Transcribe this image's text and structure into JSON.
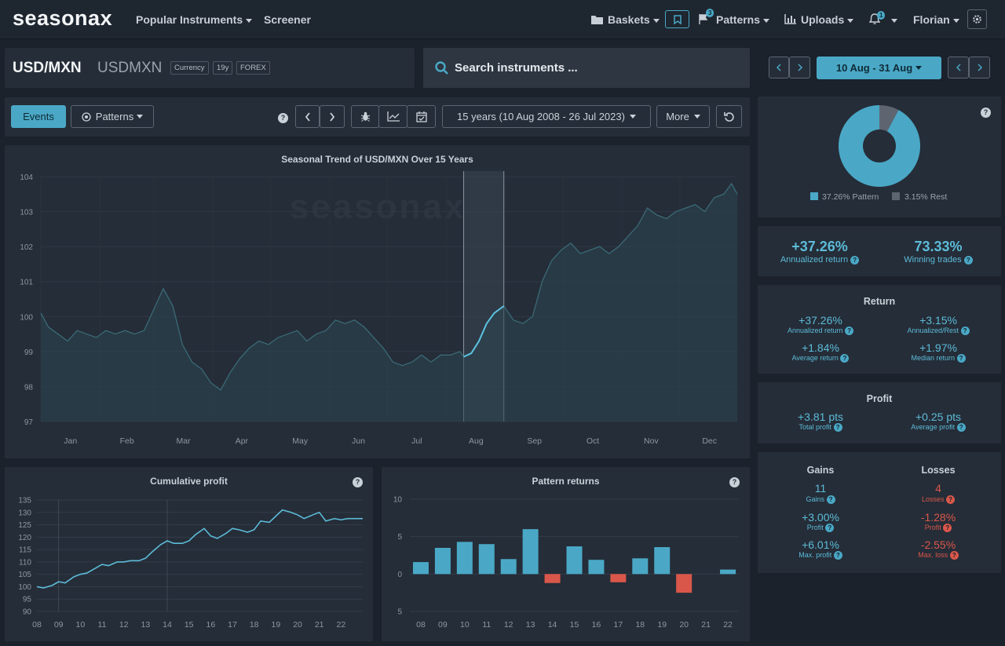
{
  "app": {
    "logo": "seasonax"
  },
  "nav": {
    "popular": "Popular Instruments",
    "screener": "Screener",
    "baskets": "Baskets",
    "patterns": "Patterns",
    "patterns_badge": "3",
    "uploads": "Uploads",
    "notif_badge": "1",
    "user": "Florian"
  },
  "instrument": {
    "symbol": "USD/MXN",
    "name": "USDMXN",
    "tags": [
      "Currency",
      "19y",
      "FOREX"
    ]
  },
  "search": {
    "placeholder": "Search instruments ..."
  },
  "period": {
    "label": "10 Aug - 31 Aug"
  },
  "toolbar": {
    "events": "Events",
    "patterns": "Patterns",
    "range": "15 years (10 Aug 2008 - 26 Jul 2023)",
    "more": "More"
  },
  "donut": {
    "pattern_label": "37.26% Pattern",
    "rest_label": "3.15% Rest",
    "pattern_pct": 37.26,
    "rest_pct": 3.15,
    "pattern_color": "#4aa8c6",
    "rest_color": "#5d6670"
  },
  "summary": {
    "annual_return": "+37.26%",
    "annual_return_label": "Annualized return",
    "winning": "73.33%",
    "winning_label": "Winning trades"
  },
  "return_box": {
    "title": "Return",
    "annualized": "+37.26%",
    "annualized_label": "Annualized return",
    "annualized_rest": "+3.15%",
    "annualized_rest_label": "Annualized/Rest",
    "average": "+1.84%",
    "average_label": "Average return",
    "median": "+1.97%",
    "median_label": "Median return"
  },
  "profit_box": {
    "title": "Profit",
    "total": "+3.81 pts",
    "total_label": "Total profit",
    "average": "+0.25 pts",
    "average_label": "Average profit"
  },
  "gl_box": {
    "gains_title": "Gains",
    "losses_title": "Losses",
    "gains_count": "11",
    "gains_label": "Gains",
    "losses_count": "4",
    "losses_label": "Losses",
    "gain_profit": "+3.00%",
    "loss_profit": "-1.28%",
    "profit_label": "Profit",
    "max_profit": "+6.01%",
    "max_profit_label": "Max. profit",
    "max_loss": "-2.55%",
    "max_loss_label": "Max. loss"
  },
  "chart_data": [
    {
      "type": "area",
      "title": "Seasonal Trend of USD/MXN Over 15 Years",
      "watermark": "seasonax",
      "ylim": [
        97,
        104
      ],
      "yticks": [
        97,
        98,
        99,
        100,
        101,
        102,
        103,
        104
      ],
      "months": [
        "Jan",
        "Feb",
        "Mar",
        "Apr",
        "May",
        "Jun",
        "Jul",
        "Aug",
        "Sep",
        "Oct",
        "Nov",
        "Dec"
      ],
      "highlight_range": [
        "10 Aug",
        "31 Aug"
      ],
      "x_day": [
        1,
        5,
        10,
        15,
        20,
        25,
        30,
        35,
        40,
        45,
        50,
        55,
        60,
        65,
        70,
        75,
        80,
        85,
        90,
        95,
        100,
        105,
        110,
        115,
        120,
        125,
        130,
        135,
        140,
        145,
        150,
        155,
        160,
        165,
        170,
        175,
        180,
        185,
        190,
        195,
        200,
        205,
        210,
        215,
        220,
        222,
        226,
        230,
        234,
        238,
        243,
        248,
        253,
        258,
        263,
        268,
        273,
        278,
        283,
        288,
        293,
        298,
        303,
        308,
        313,
        318,
        323,
        328,
        333,
        338,
        343,
        348,
        353,
        358,
        362,
        365
      ],
      "y": [
        100.1,
        99.7,
        99.5,
        99.3,
        99.6,
        99.5,
        99.4,
        99.6,
        99.5,
        99.6,
        99.5,
        99.6,
        100.2,
        100.8,
        100.3,
        99.2,
        98.7,
        98.5,
        98.1,
        97.9,
        98.4,
        98.8,
        99.1,
        99.3,
        99.2,
        99.4,
        99.5,
        99.6,
        99.3,
        99.5,
        99.6,
        99.9,
        99.8,
        99.9,
        99.7,
        99.4,
        99.1,
        98.7,
        98.6,
        98.7,
        98.9,
        98.7,
        98.9,
        98.9,
        99.0,
        98.85,
        98.95,
        99.3,
        99.8,
        100.1,
        100.3,
        99.9,
        99.8,
        100.0,
        101.0,
        101.6,
        101.9,
        102.1,
        101.8,
        101.9,
        102.0,
        101.8,
        102.0,
        102.3,
        102.6,
        103.1,
        102.9,
        102.8,
        103.0,
        103.1,
        103.2,
        103.0,
        103.4,
        103.5,
        103.8,
        103.5
      ]
    },
    {
      "type": "line",
      "title": "Cumulative profit",
      "ylim": [
        90,
        135
      ],
      "yticks": [
        90,
        95,
        100,
        105,
        110,
        115,
        120,
        125,
        130,
        135
      ],
      "xticks": [
        "08",
        "09",
        "10",
        "11",
        "12",
        "13",
        "14",
        "15",
        "16",
        "17",
        "18",
        "19",
        "20",
        "21",
        "22"
      ],
      "x": [
        2008.0,
        2008.3,
        2008.7,
        2009.0,
        2009.3,
        2009.7,
        2010.0,
        2010.3,
        2010.7,
        2011.0,
        2011.3,
        2011.7,
        2012.0,
        2012.3,
        2012.7,
        2013.0,
        2013.3,
        2013.7,
        2014.0,
        2014.3,
        2014.7,
        2015.0,
        2015.3,
        2015.7,
        2016.0,
        2016.3,
        2016.7,
        2017.0,
        2017.3,
        2017.7,
        2018.0,
        2018.3,
        2018.7,
        2019.0,
        2019.3,
        2019.7,
        2020.0,
        2020.3,
        2020.7,
        2021.0,
        2021.3,
        2021.7,
        2022.0,
        2022.3,
        2022.7,
        2023.0
      ],
      "y": [
        100,
        99.5,
        100.5,
        102,
        101.5,
        104,
        105,
        105.5,
        107.5,
        109,
        108.5,
        110,
        110,
        110.5,
        110.5,
        111.5,
        114,
        117,
        118.5,
        117.5,
        117.5,
        118.5,
        121,
        123.5,
        120.5,
        119.5,
        121.5,
        123.5,
        123,
        122,
        123,
        126.5,
        126,
        128.5,
        131,
        130,
        129,
        127.5,
        129,
        130,
        126.5,
        127.5,
        127,
        127.5,
        127.5,
        127.5
      ]
    },
    {
      "type": "bar",
      "title": "Pattern returns",
      "ylim": [
        -5,
        10
      ],
      "yticks": [
        -5,
        0,
        5,
        10
      ],
      "categories": [
        "08",
        "09",
        "10",
        "11",
        "12",
        "13",
        "14",
        "15",
        "16",
        "17",
        "18",
        "19",
        "20",
        "21",
        "22"
      ],
      "values": [
        1.6,
        3.5,
        4.3,
        4.0,
        2.0,
        6.0,
        -1.2,
        3.7,
        1.9,
        -1.1,
        2.1,
        3.6,
        -2.5,
        0,
        0.6
      ],
      "pos_color": "#4aa8c6",
      "neg_color": "#d9574a"
    }
  ]
}
